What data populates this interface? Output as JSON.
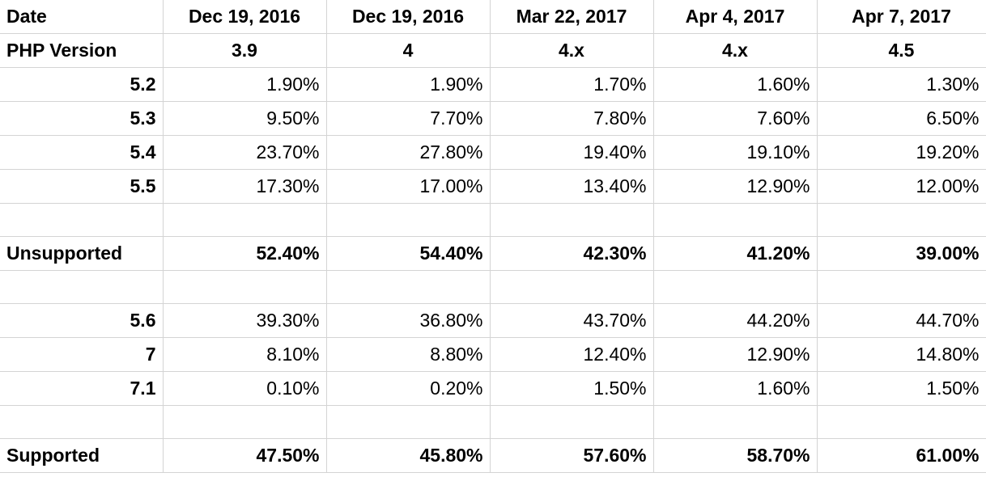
{
  "header_rows": [
    {
      "label": "Date",
      "cells": [
        "Dec 19, 2016",
        "Dec 19, 2016",
        "Mar 22, 2017",
        "Apr 4, 2017",
        "Apr 7, 2017"
      ]
    },
    {
      "label": "PHP Version",
      "cells": [
        "3.9",
        "4",
        "4.x",
        "4.x",
        "4.5"
      ]
    }
  ],
  "rows": [
    {
      "type": "version",
      "label": "5.2",
      "values": [
        "1.90%",
        "1.90%",
        "1.70%",
        "1.60%",
        "1.30%"
      ]
    },
    {
      "type": "version",
      "label": "5.3",
      "values": [
        "9.50%",
        "7.70%",
        "7.80%",
        "7.60%",
        "6.50%"
      ]
    },
    {
      "type": "version",
      "label": "5.4",
      "values": [
        "23.70%",
        "27.80%",
        "19.40%",
        "19.10%",
        "19.20%"
      ]
    },
    {
      "type": "version",
      "label": "5.5",
      "values": [
        "17.30%",
        "17.00%",
        "13.40%",
        "12.90%",
        "12.00%"
      ]
    },
    {
      "type": "empty"
    },
    {
      "type": "total",
      "label": "Unsupported",
      "values": [
        "52.40%",
        "54.40%",
        "42.30%",
        "41.20%",
        "39.00%"
      ]
    },
    {
      "type": "empty"
    },
    {
      "type": "version",
      "label": "5.6",
      "values": [
        "39.30%",
        "36.80%",
        "43.70%",
        "44.20%",
        "44.70%"
      ]
    },
    {
      "type": "version",
      "label": "7",
      "values": [
        "8.10%",
        "8.80%",
        "12.40%",
        "12.90%",
        "14.80%"
      ]
    },
    {
      "type": "version",
      "label": "7.1",
      "values": [
        "0.10%",
        "0.20%",
        "1.50%",
        "1.60%",
        "1.50%"
      ]
    },
    {
      "type": "empty"
    },
    {
      "type": "total",
      "label": "Supported",
      "values": [
        "47.50%",
        "45.80%",
        "57.60%",
        "58.70%",
        "61.00%"
      ]
    }
  ]
}
